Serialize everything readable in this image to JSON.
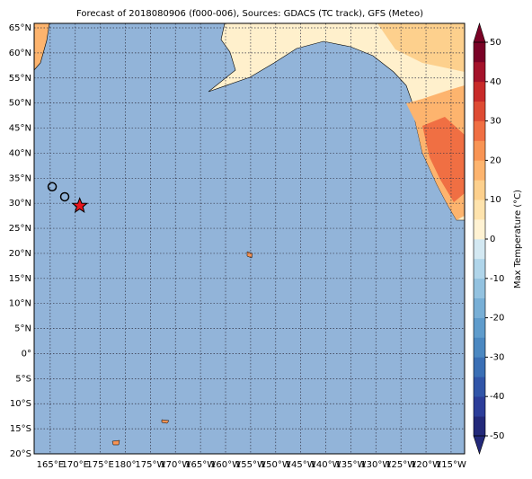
{
  "chart_data": {
    "type": "map",
    "title": "Forecast of 2018080906 (f000-006), Sources: GDACS (TC track), GFS (Meteo)",
    "xlim": [
      161.8,
      247.7
    ],
    "ylim": [
      -20,
      65.9
    ],
    "xticks": [
      {
        "value": 165,
        "label": "165°E"
      },
      {
        "value": 170,
        "label": "170°E"
      },
      {
        "value": 175,
        "label": "175°E"
      },
      {
        "value": 180,
        "label": "180°"
      },
      {
        "value": 185,
        "label": "175°W"
      },
      {
        "value": 190,
        "label": "170°W"
      },
      {
        "value": 195,
        "label": "165°W"
      },
      {
        "value": 200,
        "label": "160°W"
      },
      {
        "value": 205,
        "label": "155°W"
      },
      {
        "value": 210,
        "label": "150°W"
      },
      {
        "value": 215,
        "label": "145°W"
      },
      {
        "value": 220,
        "label": "140°W"
      },
      {
        "value": 225,
        "label": "135°W"
      },
      {
        "value": 230,
        "label": "130°W"
      },
      {
        "value": 235,
        "label": "125°W"
      },
      {
        "value": 240,
        "label": "120°W"
      },
      {
        "value": 245,
        "label": "115°W"
      }
    ],
    "yticks": [
      {
        "value": -20,
        "label": "20°S"
      },
      {
        "value": -15,
        "label": "15°S"
      },
      {
        "value": -10,
        "label": "10°S"
      },
      {
        "value": -5,
        "label": "5°S"
      },
      {
        "value": 0,
        "label": "0°"
      },
      {
        "value": 5,
        "label": "5°N"
      },
      {
        "value": 10,
        "label": "10°N"
      },
      {
        "value": 15,
        "label": "15°N"
      },
      {
        "value": 20,
        "label": "20°N"
      },
      {
        "value": 25,
        "label": "25°N"
      },
      {
        "value": 30,
        "label": "30°N"
      },
      {
        "value": 35,
        "label": "35°N"
      },
      {
        "value": 40,
        "label": "40°N"
      },
      {
        "value": 45,
        "label": "45°N"
      },
      {
        "value": 50,
        "label": "50°N"
      },
      {
        "value": 55,
        "label": "55°N"
      },
      {
        "value": 60,
        "label": "60°N"
      },
      {
        "value": 65,
        "label": "65°N"
      }
    ],
    "grid": true,
    "ocean_color": "#92b4d9",
    "track": {
      "lon": [
        165.4,
        167.9
      ],
      "lat": [
        33.3,
        31.3
      ],
      "color": "none"
    },
    "current_position": {
      "lon": 170.9,
      "lat": 29.5,
      "color": "#e8141c"
    },
    "colorbar": {
      "label": "Max Temperature (°C)",
      "lim": [
        -50,
        50
      ],
      "ticks": [
        -50,
        -40,
        -30,
        -20,
        -10,
        0,
        10,
        20,
        30,
        40,
        50
      ],
      "colors": [
        "#23297a",
        "#2c3d99",
        "#3155a8",
        "#3a6fb5",
        "#4b88c1",
        "#5f9ccc",
        "#78afd6",
        "#93c2e0",
        "#b0d5ea",
        "#d3e8f2",
        "#fff2d3",
        "#fee3ad",
        "#fdd08d",
        "#fdb46e",
        "#f89454",
        "#f06f43",
        "#de4b33",
        "#c82a29",
        "#a4122a",
        "#7a0226"
      ]
    }
  }
}
